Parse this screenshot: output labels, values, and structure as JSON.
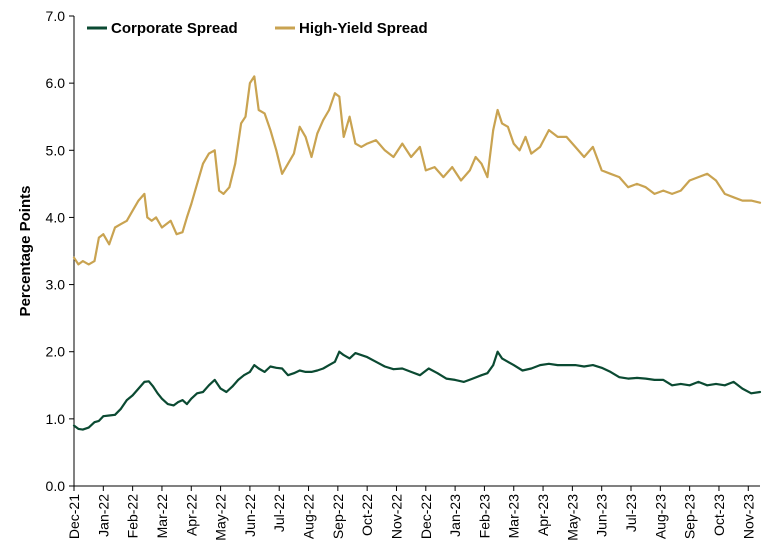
{
  "chart_data": {
    "type": "line",
    "title": "",
    "xlabel": "",
    "ylabel": "Percentage Points",
    "ylim": [
      0,
      7
    ],
    "yticks": [
      "0.0",
      "1.0",
      "2.0",
      "3.0",
      "4.0",
      "5.0",
      "6.0",
      "7.0"
    ],
    "x_tick_labels": [
      "Dec-21",
      "Jan-22",
      "Feb-22",
      "Mar-22",
      "Apr-22",
      "May-22",
      "Jun-22",
      "Jul-22",
      "Aug-22",
      "Sep-22",
      "Oct-22",
      "Nov-22",
      "Dec-22",
      "Jan-23",
      "Feb-23",
      "Mar-23",
      "Apr-23",
      "May-23",
      "Jun-23",
      "Jul-23",
      "Aug-23",
      "Sep-23",
      "Oct-23",
      "Nov-23"
    ],
    "grid": false,
    "legend_position": "top-left",
    "x_unit": "months since Dec-21",
    "xlim": [
      0,
      23.4
    ],
    "series": [
      {
        "name": "Corporate Spread",
        "color": "#0b4a32",
        "x": [
          0,
          0.15,
          0.3,
          0.5,
          0.7,
          0.85,
          1.0,
          1.2,
          1.4,
          1.6,
          1.8,
          2.0,
          2.2,
          2.4,
          2.55,
          2.7,
          2.85,
          3.0,
          3.2,
          3.4,
          3.55,
          3.7,
          3.85,
          4.0,
          4.2,
          4.4,
          4.6,
          4.8,
          5.0,
          5.2,
          5.4,
          5.6,
          5.8,
          6.0,
          6.15,
          6.3,
          6.5,
          6.7,
          6.9,
          7.1,
          7.3,
          7.5,
          7.7,
          7.9,
          8.1,
          8.3,
          8.5,
          8.7,
          8.9,
          9.05,
          9.2,
          9.4,
          9.6,
          9.8,
          10.0,
          10.3,
          10.6,
          10.9,
          11.2,
          11.5,
          11.8,
          12.1,
          12.4,
          12.7,
          13.0,
          13.3,
          13.6,
          13.9,
          14.1,
          14.3,
          14.45,
          14.6,
          14.8,
          15.0,
          15.3,
          15.6,
          15.9,
          16.2,
          16.5,
          16.8,
          17.1,
          17.4,
          17.7,
          18.0,
          18.3,
          18.6,
          18.9,
          19.2,
          19.5,
          19.8,
          20.1,
          20.4,
          20.7,
          21.0,
          21.3,
          21.6,
          21.9,
          22.2,
          22.5,
          22.8,
          23.1,
          23.4
        ],
        "values": [
          0.9,
          0.85,
          0.84,
          0.87,
          0.95,
          0.97,
          1.04,
          1.05,
          1.06,
          1.15,
          1.28,
          1.35,
          1.45,
          1.55,
          1.56,
          1.48,
          1.38,
          1.3,
          1.22,
          1.2,
          1.25,
          1.28,
          1.22,
          1.3,
          1.38,
          1.4,
          1.5,
          1.58,
          1.45,
          1.4,
          1.48,
          1.58,
          1.65,
          1.7,
          1.8,
          1.75,
          1.7,
          1.78,
          1.76,
          1.75,
          1.65,
          1.68,
          1.72,
          1.7,
          1.7,
          1.72,
          1.75,
          1.8,
          1.85,
          2.0,
          1.95,
          1.9,
          1.98,
          1.95,
          1.92,
          1.85,
          1.78,
          1.74,
          1.75,
          1.7,
          1.65,
          1.75,
          1.68,
          1.6,
          1.58,
          1.55,
          1.6,
          1.65,
          1.68,
          1.8,
          2.0,
          1.9,
          1.85,
          1.8,
          1.72,
          1.75,
          1.8,
          1.82,
          1.8,
          1.8,
          1.8,
          1.78,
          1.8,
          1.76,
          1.7,
          1.62,
          1.6,
          1.61,
          1.6,
          1.58,
          1.58,
          1.5,
          1.52,
          1.5,
          1.55,
          1.5,
          1.52,
          1.5,
          1.55,
          1.45,
          1.38,
          1.4
        ]
      },
      {
        "name": "High-Yield Spread",
        "color": "#c9a351",
        "x": [
          0,
          0.15,
          0.3,
          0.5,
          0.7,
          0.85,
          1.0,
          1.2,
          1.4,
          1.6,
          1.8,
          2.0,
          2.2,
          2.4,
          2.5,
          2.65,
          2.8,
          3.0,
          3.15,
          3.3,
          3.5,
          3.7,
          3.85,
          4.0,
          4.2,
          4.4,
          4.6,
          4.8,
          4.95,
          5.1,
          5.3,
          5.5,
          5.7,
          5.85,
          6.0,
          6.15,
          6.3,
          6.5,
          6.7,
          6.9,
          7.1,
          7.3,
          7.5,
          7.7,
          7.9,
          8.1,
          8.3,
          8.5,
          8.7,
          8.9,
          9.05,
          9.2,
          9.4,
          9.6,
          9.8,
          10.0,
          10.3,
          10.6,
          10.9,
          11.2,
          11.5,
          11.8,
          12.0,
          12.3,
          12.6,
          12.9,
          13.2,
          13.5,
          13.7,
          13.9,
          14.1,
          14.3,
          14.45,
          14.6,
          14.8,
          15.0,
          15.2,
          15.4,
          15.6,
          15.9,
          16.2,
          16.5,
          16.8,
          17.1,
          17.4,
          17.7,
          18.0,
          18.3,
          18.6,
          18.9,
          19.2,
          19.5,
          19.8,
          20.1,
          20.4,
          20.7,
          21.0,
          21.3,
          21.6,
          21.9,
          22.2,
          22.5,
          22.8,
          23.1,
          23.4
        ],
        "values": [
          3.4,
          3.3,
          3.35,
          3.3,
          3.35,
          3.7,
          3.75,
          3.6,
          3.85,
          3.9,
          3.95,
          4.1,
          4.25,
          4.35,
          4.0,
          3.95,
          4.0,
          3.85,
          3.9,
          3.95,
          3.75,
          3.78,
          4.0,
          4.2,
          4.5,
          4.8,
          4.95,
          5.0,
          4.4,
          4.35,
          4.45,
          4.8,
          5.4,
          5.5,
          6.0,
          6.1,
          5.6,
          5.55,
          5.3,
          5.0,
          4.65,
          4.8,
          4.95,
          5.35,
          5.2,
          4.9,
          5.25,
          5.45,
          5.6,
          5.85,
          5.8,
          5.2,
          5.5,
          5.1,
          5.05,
          5.1,
          5.15,
          5.0,
          4.9,
          5.1,
          4.9,
          5.05,
          4.7,
          4.75,
          4.6,
          4.75,
          4.55,
          4.7,
          4.9,
          4.8,
          4.6,
          5.3,
          5.6,
          5.4,
          5.35,
          5.1,
          5.0,
          5.2,
          4.95,
          5.05,
          5.3,
          5.2,
          5.2,
          5.05,
          4.9,
          5.05,
          4.7,
          4.65,
          4.6,
          4.45,
          4.5,
          4.45,
          4.35,
          4.4,
          4.35,
          4.4,
          4.55,
          4.6,
          4.65,
          4.55,
          4.35,
          4.3,
          4.25,
          4.25,
          4.22
        ]
      }
    ]
  }
}
